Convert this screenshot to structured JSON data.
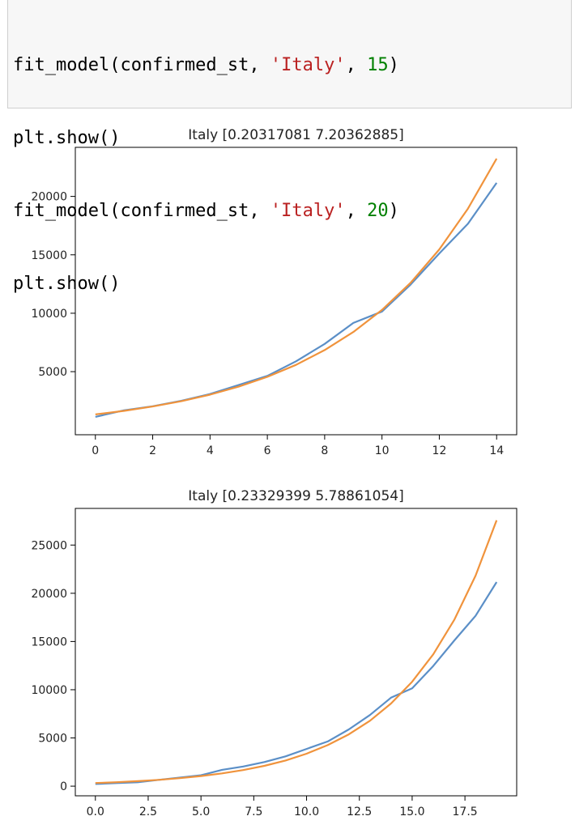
{
  "code_cell": {
    "lines": [
      [
        {
          "t": "fit_model(confirmed_st, ",
          "c": "plain"
        },
        {
          "t": "'Italy'",
          "c": "str"
        },
        {
          "t": ", ",
          "c": "plain"
        },
        {
          "t": "15",
          "c": "num"
        },
        {
          "t": ")",
          "c": "plain"
        }
      ],
      [
        {
          "t": "plt.show()",
          "c": "plain"
        }
      ],
      [
        {
          "t": "fit_model(confirmed_st, ",
          "c": "plain"
        },
        {
          "t": "'Italy'",
          "c": "str"
        },
        {
          "t": ", ",
          "c": "plain"
        },
        {
          "t": "20",
          "c": "num"
        },
        {
          "t": ")",
          "c": "plain"
        }
      ],
      [
        {
          "t": "plt.show()",
          "c": "plain"
        }
      ]
    ]
  },
  "colors": {
    "blue": "#5b8fc7",
    "orange": "#f0933c"
  },
  "chart_data": [
    {
      "type": "line",
      "title": "Italy [0.20317081 7.20362885]",
      "xlabel": "",
      "ylabel": "",
      "xlim": [
        -0.7,
        14.7
      ],
      "ylim": [
        -400,
        24200
      ],
      "xticks": [
        0,
        2,
        4,
        6,
        8,
        10,
        12,
        14
      ],
      "xtick_labels": [
        "0",
        "2",
        "4",
        "6",
        "8",
        "10",
        "12",
        "14"
      ],
      "yticks": [
        5000,
        10000,
        15000,
        20000
      ],
      "ytick_labels": [
        "5000",
        "10000",
        "15000",
        "20000"
      ],
      "grid": false,
      "series": [
        {
          "color": "#5b8fc7",
          "x": [
            0,
            1,
            2,
            3,
            4,
            5,
            6,
            7,
            8,
            9,
            10,
            11,
            12,
            13,
            14
          ],
          "values": [
            1128,
            1694,
            2036,
            2502,
            3089,
            3858,
            4636,
            5883,
            7375,
            9172,
            10149,
            12462,
            15113,
            17660,
            21157
          ]
        },
        {
          "color": "#f0933c",
          "x": [
            0,
            1,
            2,
            3,
            4,
            5,
            6,
            7,
            8,
            9,
            10,
            11,
            12,
            13,
            14
          ],
          "values": [
            1342,
            1645,
            2017,
            2472,
            3030,
            3715,
            4554,
            5583,
            6845,
            8391,
            10287,
            12611,
            15461,
            18953,
            23236
          ]
        }
      ]
    },
    {
      "type": "line",
      "title": "Italy [0.23329399 5.78861054]",
      "xlabel": "",
      "ylabel": "",
      "xlim": [
        -0.95,
        19.95
      ],
      "ylim": [
        -1000,
        28800
      ],
      "xticks": [
        0,
        2.5,
        5,
        7.5,
        10,
        12.5,
        15,
        17.5
      ],
      "xtick_labels": [
        "0.0",
        "2.5",
        "5.0",
        "7.5",
        "10.0",
        "12.5",
        "15.0",
        "17.5"
      ],
      "yticks": [
        0,
        5000,
        10000,
        15000,
        20000,
        25000
      ],
      "ytick_labels": [
        "0",
        "5000",
        "10000",
        "15000",
        "20000",
        "25000"
      ],
      "grid": false,
      "series": [
        {
          "color": "#5b8fc7",
          "x": [
            0,
            1,
            2,
            3,
            4,
            5,
            6,
            7,
            8,
            9,
            10,
            11,
            12,
            13,
            14,
            15,
            16,
            17,
            18,
            19
          ],
          "values": [
            229,
            322,
            400,
            650,
            888,
            1128,
            1694,
            2036,
            2502,
            3089,
            3858,
            4636,
            5883,
            7375,
            9172,
            10149,
            12462,
            15113,
            17660,
            21157
          ]
        },
        {
          "color": "#f0933c",
          "x": [
            0,
            1,
            2,
            3,
            4,
            5,
            6,
            7,
            8,
            9,
            10,
            11,
            12,
            13,
            14,
            15,
            16,
            17,
            18,
            19
          ],
          "values": [
            326,
            411,
            519,
            656,
            829,
            1047,
            1322,
            1670,
            2109,
            2664,
            3365,
            4251,
            5370,
            6784,
            8570,
            10825,
            13675,
            17274,
            21821,
            27565
          ]
        }
      ]
    }
  ]
}
